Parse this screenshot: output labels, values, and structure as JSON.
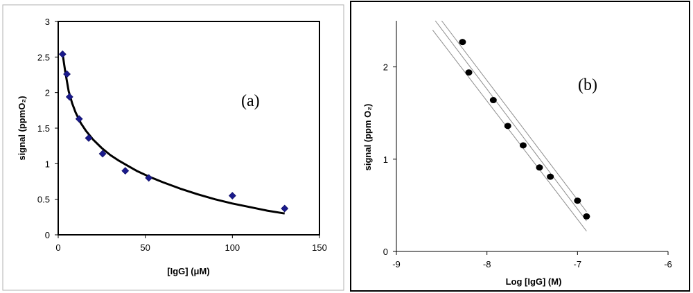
{
  "chart_data": [
    {
      "type": "scatter",
      "panel_label": "(a)",
      "xlabel": "[IgG] (μM)",
      "ylabel": "signal (ppmO₂)",
      "xlim": [
        0,
        150
      ],
      "ylim": [
        0,
        3
      ],
      "x_ticks": [
        "0",
        "50",
        "100",
        "150"
      ],
      "y_ticks": [
        "0",
        "0.5",
        "1",
        "1.5",
        "2",
        "2.5",
        "3"
      ],
      "grid": false,
      "marker": "diamond",
      "marker_color": "#1a1a8c",
      "series": [
        {
          "marker": "diamond",
          "x": [
            2.5,
            5,
            6.5,
            12,
            17.5,
            25.5,
            38.5,
            52,
            100,
            130
          ],
          "y": [
            2.54,
            2.26,
            1.94,
            1.63,
            1.36,
            1.14,
            0.9,
            0.8,
            0.55,
            0.37
          ]
        }
      ],
      "fit_curve": {
        "x": [
          2.5,
          4,
          6,
          8,
          10,
          13,
          16,
          20,
          25,
          30,
          35,
          40,
          45,
          52,
          60,
          70,
          80,
          90,
          100,
          110,
          120,
          130
        ],
        "y": [
          2.55,
          2.3,
          2.02,
          1.85,
          1.72,
          1.57,
          1.46,
          1.34,
          1.22,
          1.12,
          1.04,
          0.97,
          0.9,
          0.82,
          0.74,
          0.65,
          0.57,
          0.5,
          0.44,
          0.39,
          0.34,
          0.3
        ]
      }
    },
    {
      "type": "scatter",
      "panel_label": "(b)",
      "xlabel": "Log [IgG] (M)",
      "ylabel": "signal (ppm O₂)",
      "xlim": [
        -9,
        -6
      ],
      "ylim": [
        0,
        2.5
      ],
      "x_ticks": [
        "-9",
        "-8",
        "-7",
        "-6"
      ],
      "y_ticks": [
        "0",
        "1",
        "2"
      ],
      "grid": false,
      "marker": "circle",
      "marker_color": "#000000",
      "series": [
        {
          "marker": "circle",
          "x": [
            -8.27,
            -8.2,
            -7.93,
            -7.77,
            -7.6,
            -7.42,
            -7.3,
            -7.0,
            -6.9
          ],
          "y": [
            2.27,
            1.94,
            1.64,
            1.36,
            1.15,
            0.91,
            0.81,
            0.55,
            0.38
          ]
        }
      ],
      "fit_lines": [
        {
          "x": [
            -8.57,
            -6.9
          ],
          "y": [
            2.5,
            0.33
          ]
        },
        {
          "x": [
            -8.5,
            -6.9
          ],
          "y": [
            2.5,
            0.43
          ]
        },
        {
          "x": [
            -8.6,
            -6.9
          ],
          "y": [
            2.4,
            0.22
          ]
        }
      ]
    }
  ]
}
